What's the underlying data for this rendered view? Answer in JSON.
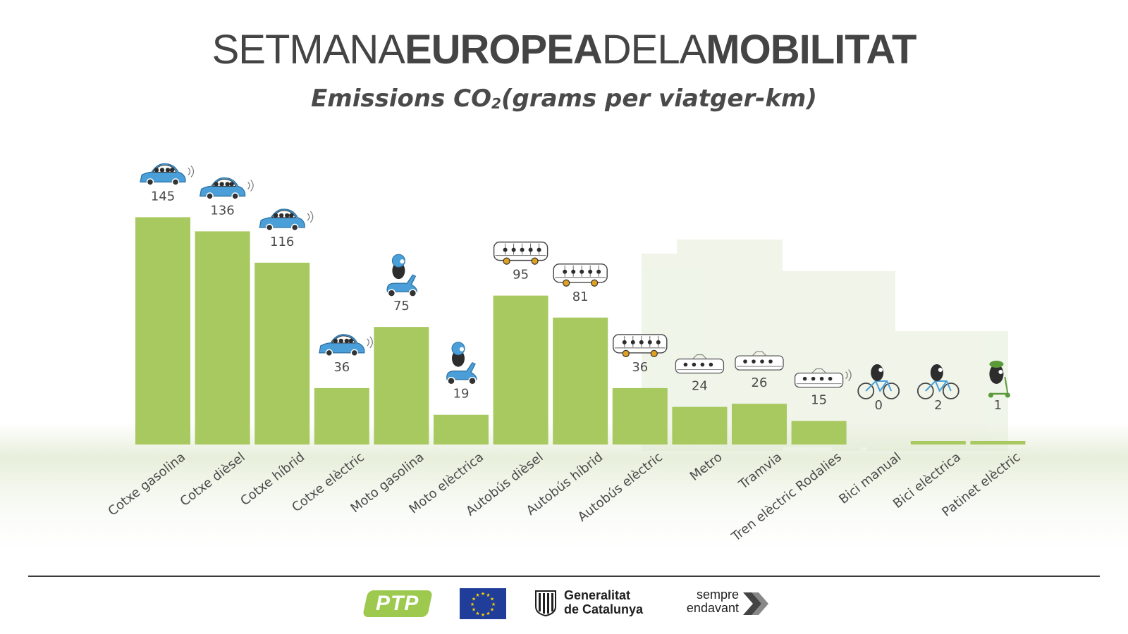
{
  "header": {
    "title_part1": "SETMANA",
    "title_part2": "EUROPEA",
    "title_part3": "DELA",
    "title_part4": "MOBILITAT",
    "subtitle_before": "Emissions CO",
    "subtitle_sub": "2",
    "subtitle_after": "(grams per viatger-km)"
  },
  "chart_data": {
    "type": "bar",
    "title": "Emissions CO2 (grams per viatger-km)",
    "categories": [
      "Cotxe gasolina",
      "Cotxe dièsel",
      "Cotxe híbrid",
      "Cotxe elèctric",
      "Moto gasolina",
      "Moto elèctrica",
      "Autobús dièsel",
      "Autobús híbrid",
      "Autobús elèctric",
      "Metro",
      "Tramvia",
      "Tren elèctric Rodalies",
      "Bici manual",
      "Bici elèctrica",
      "Patinet elèctric"
    ],
    "values": [
      145,
      136,
      116,
      36,
      75,
      19,
      95,
      81,
      36,
      24,
      26,
      15,
      0,
      2,
      1
    ],
    "icons": [
      "car-icon",
      "car-icon",
      "car-icon",
      "car-icon",
      "scooter-icon",
      "scooter-icon",
      "bus-icon",
      "bus-icon",
      "bus-icon",
      "metro-icon",
      "tram-icon",
      "train-icon",
      "bicycle-icon",
      "bicycle-icon",
      "kick-scooter-icon"
    ],
    "ylim": [
      0,
      160
    ],
    "grid": false,
    "colors": {
      "bar": "#a8c95f",
      "car": "#4a9fd8",
      "scooter": "#4a9fd8",
      "bus_wheel": "#e0a020",
      "scooter_green": "#5a9a3a",
      "text": "#4a4a4a"
    }
  },
  "footer": {
    "ptp_logo": "PTP",
    "gencat_line1": "Generalitat",
    "gencat_line2": "de Catalunya",
    "sempre_line1": "sempre",
    "sempre_line2": "endavant"
  }
}
